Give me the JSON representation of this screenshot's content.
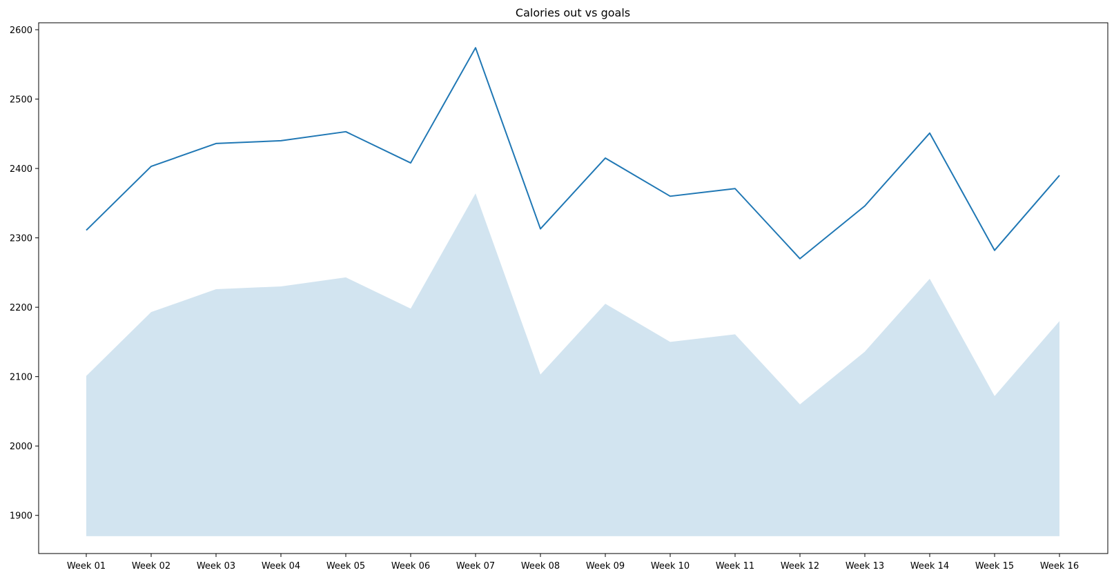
{
  "chart_data": {
    "type": "line",
    "title": "Calories out vs goals",
    "xlabel": "",
    "ylabel": "",
    "categories": [
      "Week 01",
      "Week 02",
      "Week 03",
      "Week 04",
      "Week 05",
      "Week 06",
      "Week 07",
      "Week 08",
      "Week 09",
      "Week 10",
      "Week 11",
      "Week 12",
      "Week 13",
      "Week 14",
      "Week 15",
      "Week 16"
    ],
    "series": [
      {
        "kind": "line",
        "values": [
          2311,
          2403,
          2436,
          2440,
          2453,
          2408,
          2574,
          2313,
          2415,
          2360,
          2371,
          2270,
          2346,
          2451,
          2282,
          2390
        ]
      },
      {
        "kind": "area",
        "base": 1870,
        "values": [
          2101,
          2193,
          2226,
          2230,
          2243,
          2198,
          2364,
          2103,
          2205,
          2150,
          2161,
          2060,
          2136,
          2241,
          2072,
          2180
        ]
      }
    ],
    "ylim": [
      1845,
      2610
    ],
    "yticks": [
      1900,
      2000,
      2100,
      2200,
      2300,
      2400,
      2500,
      2600
    ],
    "grid": false,
    "colors": {
      "line": "#1f77b4",
      "area": "#1f77b4",
      "area_opacity": "0.2"
    }
  }
}
